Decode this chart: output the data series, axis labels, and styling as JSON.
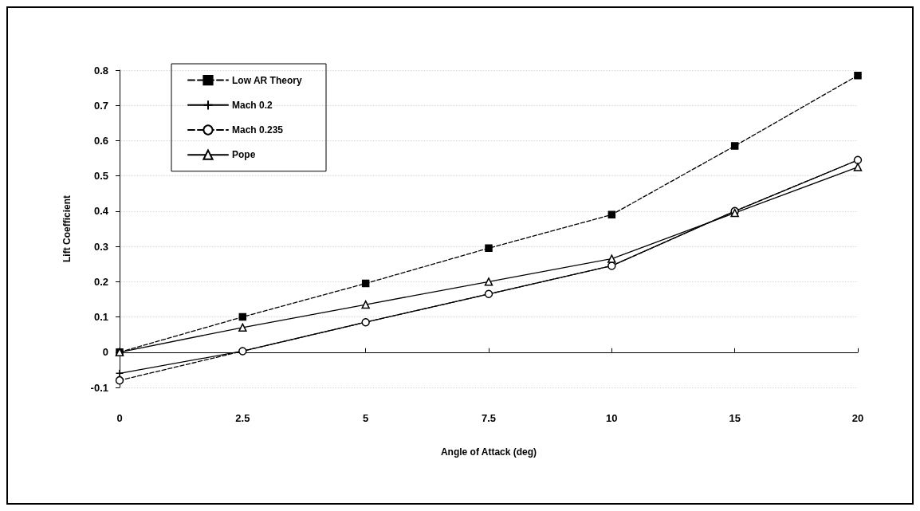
{
  "chart_data": {
    "type": "line",
    "xlabel": "Angle of Attack (deg)",
    "ylabel": "Lift Coefficient",
    "categories": [
      "0",
      "2.5",
      "5",
      "7.5",
      "10",
      "15",
      "20"
    ],
    "ylim": [
      -0.1,
      0.8
    ],
    "yticks": [
      -0.1,
      0,
      0.1,
      0.2,
      0.3,
      0.4,
      0.5,
      0.6,
      0.7,
      0.8
    ],
    "grid": "y",
    "legend": "top left",
    "series": [
      {
        "name": "Low AR Theory",
        "color": "#000000",
        "marker": "square",
        "line_style": "dashed",
        "values": [
          0,
          0.1,
          0.195,
          0.295,
          0.39,
          0.585,
          0.785
        ]
      },
      {
        "name": "Mach 0.2",
        "color": "#000000",
        "marker": "cross",
        "line_style": "solid",
        "values": [
          -0.06,
          0.003,
          0.085,
          0.165,
          0.245,
          0.4,
          0.545
        ]
      },
      {
        "name": "Mach 0.235",
        "color": "#000000",
        "marker": "circle",
        "line_style": "dashed",
        "values": [
          -0.08,
          0.003,
          0.085,
          0.165,
          0.245,
          0.4,
          0.545
        ]
      },
      {
        "name": "Pope",
        "color": "#000000",
        "marker": "triangle",
        "line_style": "solid",
        "values": [
          0,
          0.07,
          0.135,
          0.2,
          0.265,
          0.395,
          0.525
        ]
      }
    ]
  }
}
